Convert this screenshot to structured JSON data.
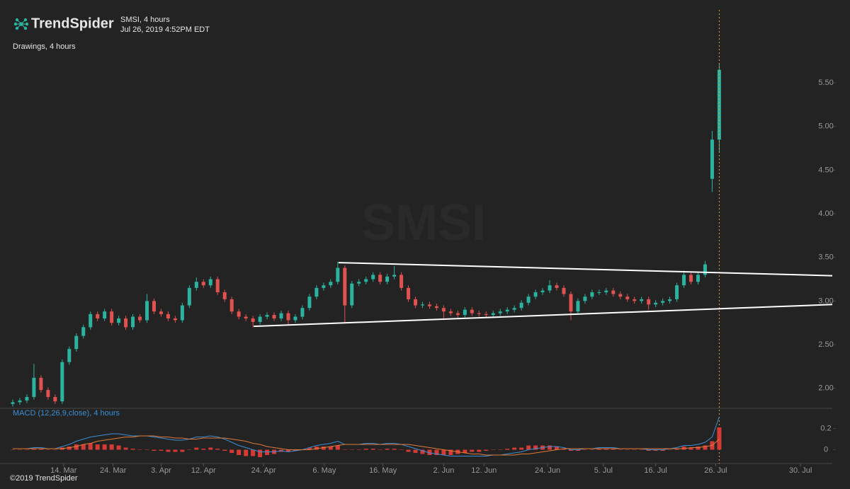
{
  "chart_data": {
    "type": "candlestick",
    "brand": "TrendSpider",
    "title": "SMSI, 4 hours",
    "subtitle": "Jul 26, 2019 4:52PM EDT",
    "drawings_label": "Drawings, 4 hours",
    "watermark": "SMSI",
    "copyright": "©2019 TrendSpider",
    "up_color": "#2bb3a0",
    "down_color": "#e0524f",
    "ohlc": [
      [
        1.82,
        1.87,
        1.79,
        1.84
      ],
      [
        1.84,
        1.89,
        1.81,
        1.86
      ],
      [
        1.86,
        1.93,
        1.83,
        1.9
      ],
      [
        1.9,
        2.28,
        1.87,
        2.12
      ],
      [
        2.12,
        2.15,
        1.95,
        1.98
      ],
      [
        1.98,
        2.01,
        1.87,
        1.9
      ],
      [
        1.9,
        1.93,
        1.82,
        1.85
      ],
      [
        1.85,
        2.33,
        1.82,
        2.3
      ],
      [
        2.3,
        2.48,
        2.27,
        2.45
      ],
      [
        2.45,
        2.63,
        2.42,
        2.6
      ],
      [
        2.6,
        2.73,
        2.57,
        2.7
      ],
      [
        2.7,
        2.88,
        2.67,
        2.85
      ],
      [
        2.85,
        2.88,
        2.77,
        2.8
      ],
      [
        2.8,
        2.91,
        2.77,
        2.88
      ],
      [
        2.88,
        2.91,
        2.72,
        2.75
      ],
      [
        2.75,
        2.83,
        2.72,
        2.8
      ],
      [
        2.8,
        2.83,
        2.67,
        2.7
      ],
      [
        2.7,
        2.85,
        2.67,
        2.82
      ],
      [
        2.82,
        2.85,
        2.75,
        2.78
      ],
      [
        2.78,
        3.08,
        2.75,
        3.0
      ],
      [
        3.0,
        3.03,
        2.85,
        2.88
      ],
      [
        2.88,
        2.91,
        2.82,
        2.85
      ],
      [
        2.85,
        2.88,
        2.77,
        2.8
      ],
      [
        2.8,
        2.83,
        2.75,
        2.78
      ],
      [
        2.78,
        2.98,
        2.75,
        2.95
      ],
      [
        2.95,
        3.18,
        2.92,
        3.15
      ],
      [
        3.15,
        3.27,
        3.12,
        3.22
      ],
      [
        3.22,
        3.25,
        3.15,
        3.18
      ],
      [
        3.18,
        3.28,
        3.15,
        3.25
      ],
      [
        3.25,
        3.28,
        3.07,
        3.1
      ],
      [
        3.1,
        3.13,
        2.99,
        3.02
      ],
      [
        3.02,
        3.05,
        2.85,
        2.88
      ],
      [
        2.88,
        2.91,
        2.79,
        2.82
      ],
      [
        2.82,
        2.85,
        2.77,
        2.8
      ],
      [
        2.8,
        2.83,
        2.7,
        2.76
      ],
      [
        2.76,
        2.85,
        2.73,
        2.82
      ],
      [
        2.82,
        2.87,
        2.79,
        2.84
      ],
      [
        2.84,
        2.87,
        2.77,
        2.8
      ],
      [
        2.8,
        2.89,
        2.77,
        2.86
      ],
      [
        2.86,
        2.89,
        2.72,
        2.78
      ],
      [
        2.78,
        2.85,
        2.75,
        2.82
      ],
      [
        2.82,
        2.95,
        2.79,
        2.92
      ],
      [
        2.92,
        3.08,
        2.89,
        3.05
      ],
      [
        3.05,
        3.18,
        3.02,
        3.15
      ],
      [
        3.15,
        3.21,
        3.12,
        3.18
      ],
      [
        3.18,
        3.25,
        3.15,
        3.22
      ],
      [
        3.22,
        3.45,
        3.19,
        3.38
      ],
      [
        3.38,
        3.41,
        2.75,
        2.95
      ],
      [
        2.95,
        3.23,
        2.92,
        3.2
      ],
      [
        3.2,
        3.25,
        3.17,
        3.22
      ],
      [
        3.22,
        3.28,
        3.19,
        3.25
      ],
      [
        3.25,
        3.33,
        3.22,
        3.3
      ],
      [
        3.3,
        3.33,
        3.19,
        3.22
      ],
      [
        3.22,
        3.31,
        3.19,
        3.28
      ],
      [
        3.28,
        3.4,
        3.25,
        3.3
      ],
      [
        3.3,
        3.33,
        3.12,
        3.15
      ],
      [
        3.15,
        3.18,
        2.99,
        3.02
      ],
      [
        3.02,
        3.05,
        2.92,
        2.95
      ],
      [
        2.95,
        2.99,
        2.92,
        2.96
      ],
      [
        2.96,
        2.99,
        2.91,
        2.94
      ],
      [
        2.94,
        2.97,
        2.89,
        2.92
      ],
      [
        2.92,
        2.95,
        2.78,
        2.88
      ],
      [
        2.88,
        2.91,
        2.83,
        2.86
      ],
      [
        2.86,
        2.89,
        2.81,
        2.84
      ],
      [
        2.84,
        2.93,
        2.81,
        2.9
      ],
      [
        2.9,
        2.93,
        2.83,
        2.86
      ],
      [
        2.86,
        2.89,
        2.82,
        2.85
      ],
      [
        2.85,
        2.88,
        2.81,
        2.84
      ],
      [
        2.84,
        2.89,
        2.81,
        2.86
      ],
      [
        2.86,
        2.91,
        2.83,
        2.88
      ],
      [
        2.88,
        2.93,
        2.85,
        2.9
      ],
      [
        2.9,
        2.95,
        2.87,
        2.92
      ],
      [
        2.92,
        3.01,
        2.89,
        2.98
      ],
      [
        2.98,
        3.08,
        2.95,
        3.05
      ],
      [
        3.05,
        3.13,
        3.02,
        3.1
      ],
      [
        3.1,
        3.15,
        3.07,
        3.12
      ],
      [
        3.12,
        3.24,
        3.09,
        3.18
      ],
      [
        3.18,
        3.21,
        3.12,
        3.15
      ],
      [
        3.15,
        3.18,
        3.05,
        3.08
      ],
      [
        3.08,
        3.11,
        2.78,
        2.88
      ],
      [
        2.88,
        3.03,
        2.85,
        3.0
      ],
      [
        3.0,
        3.08,
        2.97,
        3.05
      ],
      [
        3.05,
        3.13,
        3.02,
        3.1
      ],
      [
        3.1,
        3.13,
        3.07,
        3.1
      ],
      [
        3.1,
        3.15,
        3.07,
        3.12
      ],
      [
        3.12,
        3.15,
        3.05,
        3.08
      ],
      [
        3.08,
        3.11,
        3.02,
        3.05
      ],
      [
        3.05,
        3.08,
        2.99,
        3.02
      ],
      [
        3.02,
        3.05,
        2.97,
        3.0
      ],
      [
        3.0,
        3.05,
        2.97,
        3.02
      ],
      [
        3.02,
        3.05,
        2.9,
        2.96
      ],
      [
        2.96,
        3.01,
        2.93,
        2.98
      ],
      [
        2.98,
        3.03,
        2.95,
        3.0
      ],
      [
        3.0,
        3.05,
        2.97,
        3.02
      ],
      [
        3.02,
        3.21,
        2.99,
        3.18
      ],
      [
        3.18,
        3.35,
        3.15,
        3.3
      ],
      [
        3.3,
        3.33,
        3.19,
        3.22
      ],
      [
        3.22,
        3.33,
        3.19,
        3.3
      ],
      [
        3.3,
        3.46,
        3.27,
        3.42
      ],
      [
        4.4,
        4.95,
        4.25,
        4.85
      ],
      [
        4.85,
        5.72,
        4.7,
        5.65
      ]
    ],
    "ylim": [
      1.77,
      6.45
    ],
    "yticks": [
      {
        "value": 2.0,
        "label": "2.00"
      },
      {
        "value": 2.5,
        "label": "2.50"
      },
      {
        "value": 3.0,
        "label": "3.00"
      },
      {
        "value": 3.5,
        "label": "3.50"
      },
      {
        "value": 4.0,
        "label": "4.00"
      },
      {
        "value": 4.5,
        "label": "4.50"
      },
      {
        "value": 5.0,
        "label": "5.00"
      },
      {
        "value": 5.5,
        "label": "5.50"
      }
    ],
    "xlim": [
      0,
      116
    ],
    "xticks": [
      {
        "value": 7.2,
        "label": "14. Mar"
      },
      {
        "value": 14.2,
        "label": "24. Mar"
      },
      {
        "value": 21,
        "label": "3. Apr"
      },
      {
        "value": 27,
        "label": "12. Apr"
      },
      {
        "value": 35.5,
        "label": "24. Apr"
      },
      {
        "value": 44.1,
        "label": "6. May"
      },
      {
        "value": 52.4,
        "label": "16. May"
      },
      {
        "value": 61,
        "label": "2. Jun"
      },
      {
        "value": 66.7,
        "label": "12. Jun"
      },
      {
        "value": 75.7,
        "label": "24. Jun"
      },
      {
        "value": 83.6,
        "label": "5. Jul"
      },
      {
        "value": 91,
        "label": "16. Jul"
      },
      {
        "value": 99.5,
        "label": "26. Jul"
      },
      {
        "value": 111.5,
        "label": "30. Jul"
      }
    ],
    "trendline_color": "#ffffff",
    "trendlines": [
      {
        "x": [
          46.1,
          116
        ],
        "y": [
          3.44,
          3.29
        ]
      },
      {
        "x": [
          34.1,
          116
        ],
        "y": [
          2.71,
          2.96
        ]
      }
    ],
    "macd": {
      "label": "MACD (12,26,9,close), 4 hours",
      "ylim": [
        -0.13,
        0.39
      ],
      "yticks": [
        0,
        0.2
      ],
      "macd_line": {
        "color": "#3a8fd6",
        "values": [
          0.01,
          0.01,
          0.01,
          0.02,
          0.02,
          0.01,
          0.01,
          0.03,
          0.05,
          0.08,
          0.1,
          0.12,
          0.13,
          0.14,
          0.15,
          0.15,
          0.14,
          0.13,
          0.13,
          0.13,
          0.12,
          0.11,
          0.1,
          0.09,
          0.09,
          0.1,
          0.12,
          0.12,
          0.13,
          0.12,
          0.1,
          0.07,
          0.04,
          0.02,
          0.0,
          -0.02,
          -0.02,
          -0.02,
          -0.01,
          -0.02,
          -0.01,
          0.0,
          0.02,
          0.04,
          0.05,
          0.06,
          0.08,
          0.05,
          0.05,
          0.05,
          0.06,
          0.06,
          0.05,
          0.06,
          0.06,
          0.05,
          0.03,
          0.01,
          -0.01,
          -0.03,
          -0.04,
          -0.05,
          -0.06,
          -0.06,
          -0.06,
          -0.06,
          -0.06,
          -0.06,
          -0.05,
          -0.05,
          -0.04,
          -0.03,
          -0.02,
          0.0,
          0.01,
          0.02,
          0.03,
          0.03,
          0.02,
          0.0,
          0.0,
          0.01,
          0.01,
          0.02,
          0.02,
          0.02,
          0.01,
          0.01,
          0.01,
          0.01,
          0.0,
          0.0,
          0.0,
          0.01,
          0.02,
          0.04,
          0.04,
          0.05,
          0.07,
          0.12,
          0.31
        ]
      },
      "signal_line": {
        "color": "#e07b39",
        "values": [
          0.01,
          0.01,
          0.01,
          0.01,
          0.01,
          0.01,
          0.01,
          0.01,
          0.02,
          0.03,
          0.05,
          0.06,
          0.08,
          0.09,
          0.1,
          0.11,
          0.12,
          0.12,
          0.13,
          0.13,
          0.13,
          0.12,
          0.12,
          0.11,
          0.11,
          0.1,
          0.1,
          0.11,
          0.11,
          0.11,
          0.11,
          0.1,
          0.09,
          0.08,
          0.06,
          0.05,
          0.03,
          0.02,
          0.01,
          0.0,
          0.0,
          0.0,
          0.0,
          0.01,
          0.02,
          0.03,
          0.04,
          0.05,
          0.05,
          0.05,
          0.05,
          0.05,
          0.05,
          0.05,
          0.05,
          0.05,
          0.05,
          0.04,
          0.03,
          0.02,
          0.01,
          0.0,
          -0.01,
          -0.02,
          -0.03,
          -0.04,
          -0.04,
          -0.05,
          -0.05,
          -0.05,
          -0.05,
          -0.05,
          -0.04,
          -0.04,
          -0.03,
          -0.02,
          -0.01,
          0.0,
          0.01,
          0.01,
          0.01,
          0.01,
          0.01,
          0.01,
          0.01,
          0.01,
          0.01,
          0.01,
          0.01,
          0.01,
          0.01,
          0.01,
          0.01,
          0.01,
          0.01,
          0.01,
          0.02,
          0.02,
          0.03,
          0.04,
          0.1
        ]
      },
      "histogram": {
        "color": "#d63a35",
        "values": [
          0,
          0,
          0,
          0.01,
          0.01,
          0,
          0,
          0.02,
          0.03,
          0.05,
          0.05,
          0.06,
          0.05,
          0.05,
          0.05,
          0.04,
          0.02,
          0.01,
          0,
          0,
          -0.01,
          -0.01,
          -0.02,
          -0.02,
          -0.02,
          0,
          0.02,
          0.01,
          0.02,
          0.01,
          -0.01,
          -0.03,
          -0.05,
          -0.06,
          -0.06,
          -0.07,
          -0.05,
          -0.04,
          -0.02,
          -0.02,
          -0.01,
          0,
          0.02,
          0.03,
          0.03,
          0.03,
          0.04,
          0,
          0,
          0,
          0.01,
          0.01,
          0,
          0.01,
          0.01,
          0,
          -0.02,
          -0.03,
          -0.04,
          -0.05,
          -0.05,
          -0.05,
          -0.05,
          -0.04,
          -0.03,
          -0.02,
          -0.02,
          -0.01,
          0,
          0,
          0.01,
          0.02,
          0.02,
          0.04,
          0.04,
          0.04,
          0.04,
          0.03,
          0.01,
          -0.01,
          -0.01,
          0,
          0,
          0.01,
          0.01,
          0.01,
          0,
          0,
          0,
          0,
          -0.01,
          -0.01,
          -0.01,
          0,
          0.01,
          0.03,
          0.02,
          0.03,
          0.04,
          0.08,
          0.21
        ]
      }
    }
  }
}
